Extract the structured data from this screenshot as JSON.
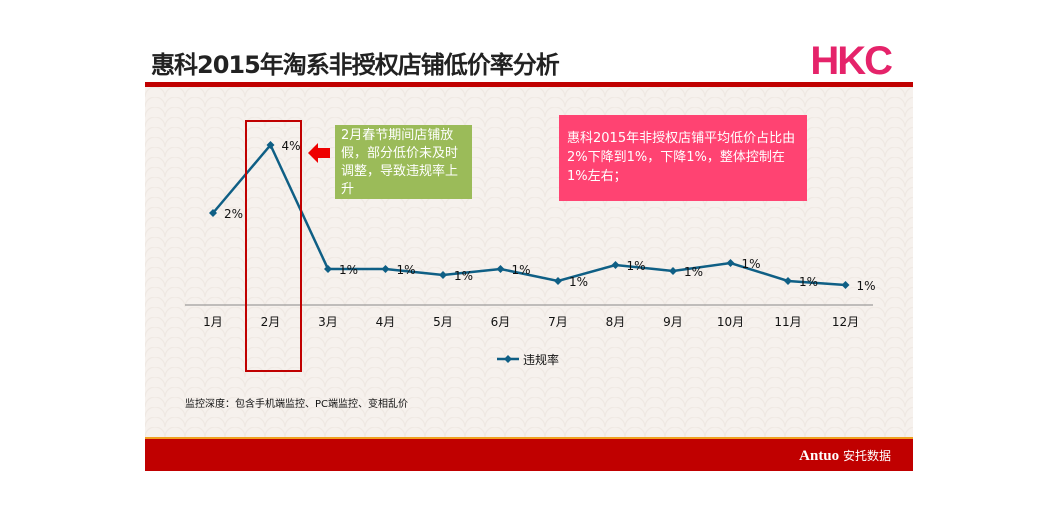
{
  "header": {
    "title": "惠科2015年淘系非授权店铺低价率分析",
    "logo": "HKC"
  },
  "notes": {
    "green": "2月春节期间店铺放假，部分低价未及时调整，导致违规率上升",
    "pink": "惠科2015年非授权店铺平均低价占比由2%下降到1%，下降1%，整体控制在1%左右；"
  },
  "footnote": "监控深度：包含手机端监控、PC端监控、变相乱价",
  "footer": {
    "brand": "Antuo",
    "brand_cn": "安托数据"
  },
  "chart_data": {
    "type": "line",
    "categories": [
      "1月",
      "2月",
      "3月",
      "4月",
      "5月",
      "6月",
      "7月",
      "8月",
      "9月",
      "10月",
      "11月",
      "12月"
    ],
    "series": [
      {
        "name": "违规率",
        "color": "#0f5f85",
        "values": [
          2.3,
          4.0,
          0.9,
          0.9,
          0.75,
          0.9,
          0.6,
          1.0,
          0.85,
          1.05,
          0.6,
          0.5
        ],
        "labels": [
          "2%",
          "4%",
          "1%",
          "1%",
          "1%",
          "1%",
          "1%",
          "1%",
          "1%",
          "1%",
          "1%",
          "1%"
        ]
      }
    ],
    "ylim": [
      0,
      4.5
    ],
    "legend": "bottom"
  }
}
